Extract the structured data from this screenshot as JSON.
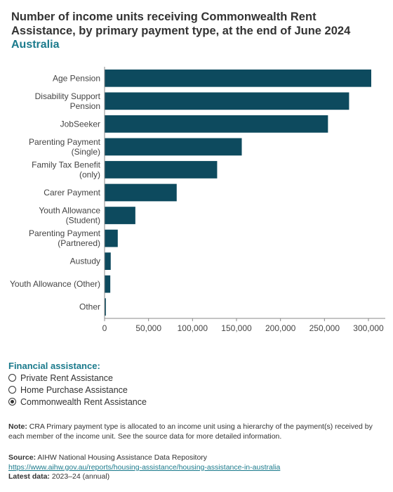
{
  "header": {
    "title": "Number of income units receiving Commonwealth Rent Assistance, by primary payment type, at the end of June 2024",
    "subtitle": "Australia"
  },
  "chart_data": {
    "type": "bar",
    "orientation": "horizontal",
    "categories": [
      [
        "Age Pension"
      ],
      [
        "Disability Support",
        "Pension"
      ],
      [
        "JobSeeker"
      ],
      [
        "Parenting Payment",
        "(Single)"
      ],
      [
        "Family Tax Benefit",
        "(only)"
      ],
      [
        "Carer Payment"
      ],
      [
        "Youth Allowance",
        "(Student)"
      ],
      [
        "Parenting Payment",
        "(Partnered)"
      ],
      [
        "Austudy"
      ],
      [
        "Youth Allowance (Other)"
      ],
      [
        "Other"
      ]
    ],
    "values": [
      313000,
      278000,
      254000,
      156000,
      128000,
      82000,
      35000,
      15000,
      7000,
      6500,
      1500
    ],
    "xlim": [
      0,
      310000
    ],
    "x_ticks": [
      0,
      50000,
      100000,
      150000,
      200000,
      250000,
      300000
    ],
    "x_tick_labels": [
      "0",
      "50,000",
      "100,000",
      "150,000",
      "200,000",
      "250,000",
      "300,000"
    ],
    "bar_color": "#0d4a5e",
    "grid": false,
    "legend": "none"
  },
  "controls": {
    "title": "Financial assistance:",
    "options": [
      {
        "label": "Private Rent Assistance",
        "selected": false
      },
      {
        "label": "Home Purchase Assistance",
        "selected": false
      },
      {
        "label": "Commonwealth Rent Assistance",
        "selected": true
      }
    ]
  },
  "footer": {
    "note_label": "Note:",
    "note_text": " CRA Primary payment type is allocated to an income unit using a hierarchy of the payment(s) received by each member of the income unit. See the source data for more detailed information.",
    "source_label": "Source:",
    "source_text": " AIHW National Housing Assistance Data Repository",
    "link_text": "https://www.aihw.gov.au/reports/housing-assistance/housing-assistance-in-australia",
    "latest_label": "Latest data:",
    "latest_text": " 2023–24 (annual)"
  }
}
